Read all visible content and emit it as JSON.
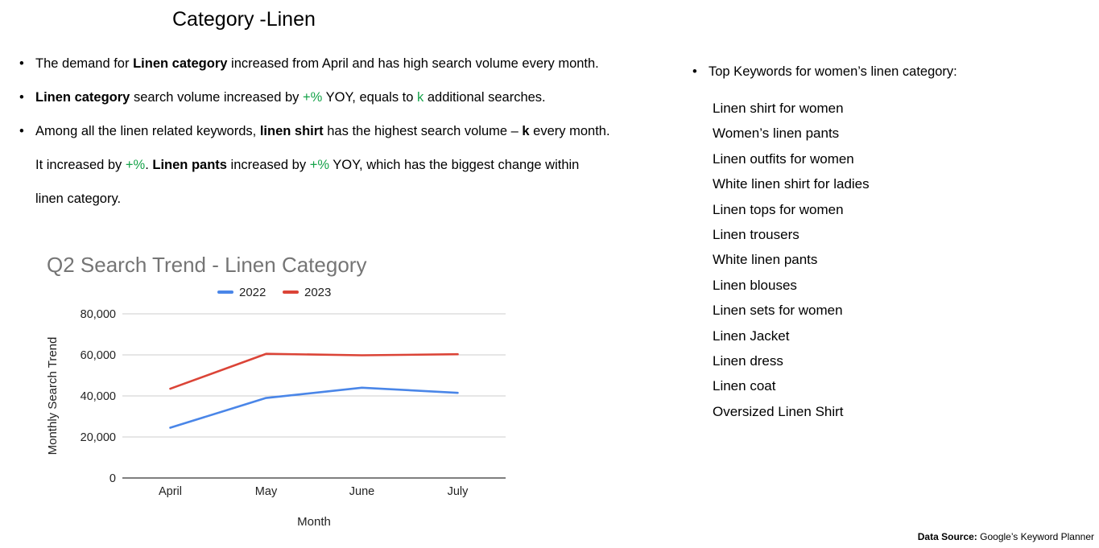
{
  "title": "Category -Linen",
  "bullets": {
    "b1": {
      "p1": "The demand for ",
      "p2": "Linen category",
      "p3": " increased from April and has high search volume every month."
    },
    "b2": {
      "p1": "Linen category",
      "p2": " search volume increased by ",
      "p3": "+%",
      "p4": " YOY, equals to ",
      "p5": "k",
      "p6": " additional searches."
    },
    "b3": {
      "l1p1": "Among all the linen related keywords, ",
      "l1p2": "linen shirt",
      "l1p3": " has the highest search volume – ",
      "l1p4": "k",
      "l1p5": " every month.",
      "l2p1": "It increased by ",
      "l2p2": "+%",
      "l2p3": ". ",
      "l2p4": "Linen pants",
      "l2p5": " increased by ",
      "l2p6": "+%",
      "l2p7": " YOY, which has the biggest change within",
      "l3": "linen category."
    }
  },
  "keywords": {
    "heading": "Top Keywords for women’s linen category:",
    "items": [
      "Linen shirt for women",
      "Women’s linen pants",
      "Linen outfits for women",
      "White linen shirt for ladies",
      "Linen tops for women",
      "Linen trousers",
      "White linen pants",
      "Linen blouses",
      "Linen sets for women",
      "Linen Jacket",
      "Linen dress",
      "Linen coat",
      "Oversized Linen Shirt"
    ]
  },
  "chart_data": {
    "type": "line",
    "title": "Q2 Search Trend - Linen Category",
    "xlabel": "Month",
    "ylabel": "Monthly Search Trend",
    "categories": [
      "April",
      "May",
      "June",
      "July"
    ],
    "ylim": [
      0,
      80000
    ],
    "yticks": [
      0,
      20000,
      40000,
      60000,
      80000
    ],
    "ytick_labels": [
      "0",
      "20,000",
      "40,000",
      "60,000",
      "80,000"
    ],
    "grid": true,
    "legend_position": "top",
    "series": [
      {
        "name": "2022",
        "color": "#4a86e8",
        "values": [
          24500,
          39000,
          44000,
          41500
        ]
      },
      {
        "name": "2023",
        "color": "#db4437",
        "values": [
          43500,
          60500,
          59800,
          60300
        ]
      }
    ]
  },
  "source": {
    "label": "Data Source:",
    "text": " Google’s Keyword Planner"
  }
}
